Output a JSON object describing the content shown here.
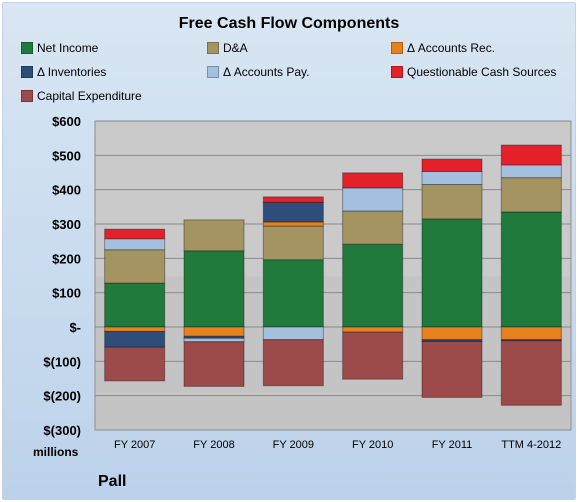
{
  "chart_data": {
    "type": "bar",
    "stacked": true,
    "title": "Free Cash Flow Components",
    "ylabel": "millions",
    "footer": "Pall",
    "categories": [
      "FY 2007",
      "FY 2008",
      "FY 2009",
      "FY 2010",
      "FY 2011",
      "TTM 4-2012"
    ],
    "ylim": [
      -300,
      600
    ],
    "yticks": [
      600,
      500,
      400,
      300,
      200,
      100,
      0,
      -100,
      -200,
      -300
    ],
    "ytick_labels": [
      "$600",
      "$500",
      "$400",
      "$300",
      "$200",
      "$100",
      "$-",
      "$(100)",
      "$(200)",
      "$(300)"
    ],
    "grid": true,
    "legend_position": "top",
    "series": [
      {
        "name": "Net Income",
        "color": "#1f7a3c",
        "values": [
          128,
          222,
          196,
          241,
          315,
          335
        ]
      },
      {
        "name": "D&A",
        "color": "#a39461",
        "values": [
          97,
          90,
          98,
          97,
          100,
          100
        ]
      },
      {
        "name": "Δ Accounts Rec.",
        "color": "#e8801e",
        "values": [
          -13,
          -27,
          12,
          -15,
          -37,
          -37
        ]
      },
      {
        "name": "Δ Inventories",
        "color": "#2f4d7a",
        "values": [
          -46,
          -6,
          57,
          0,
          -5,
          -3
        ]
      },
      {
        "name": "Δ Accounts Pay.",
        "color": "#a5bfdf",
        "values": [
          32,
          -10,
          -37,
          67,
          38,
          37
        ]
      },
      {
        "name": "Questionable Cash Sources",
        "color": "#e4202a",
        "values": [
          28,
          0,
          16,
          44,
          36,
          58
        ]
      },
      {
        "name": "Capital Expenditure",
        "color": "#9c4a4a",
        "values": [
          -98,
          -130,
          -134,
          -137,
          -163,
          -188
        ]
      }
    ]
  }
}
